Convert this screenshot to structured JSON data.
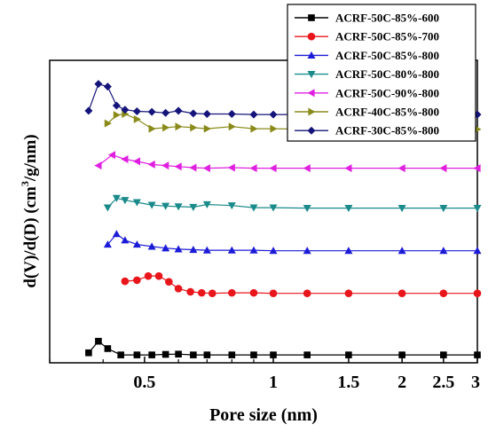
{
  "chart_data": {
    "type": "line",
    "xlabel": "Pore size (nm)",
    "ylabel_main": "d(V)/d(D) (cm",
    "ylabel_sup": "3",
    "ylabel_tail": "/g/nm)",
    "x_scale": "log",
    "xlim": [
      0.3,
      3
    ],
    "x_ticks": [
      0.5,
      1,
      1.5,
      2,
      2.5,
      3
    ],
    "x_tick_labels": [
      "0.5",
      "1",
      "1.5",
      "2",
      "2.5",
      "3"
    ],
    "y_ticks_shown": false,
    "legend_position": "top-right",
    "series": [
      {
        "name": "ACRF-50C-85%-600",
        "color": "#000000",
        "marker": "square",
        "x": [
          0.37,
          0.39,
          0.41,
          0.44,
          0.48,
          0.52,
          0.56,
          0.6,
          0.65,
          0.7,
          0.8,
          0.9,
          1.0,
          1.2,
          1.5,
          2.0,
          2.5,
          3.0
        ],
        "y": [
          0.4,
          2.6,
          1.2,
          0.0,
          0.0,
          0.0,
          0.1,
          0.15,
          0.0,
          0.0,
          0.0,
          0.0,
          0.0,
          0.0,
          0.0,
          0.0,
          0.0,
          0.0
        ]
      },
      {
        "name": "ACRF-50C-85%-700",
        "color": "#e8151b",
        "marker": "circle",
        "x": [
          0.45,
          0.48,
          0.51,
          0.54,
          0.57,
          0.6,
          0.64,
          0.68,
          0.72,
          0.8,
          0.9,
          1.0,
          1.2,
          1.5,
          2.0,
          2.5,
          3.0
        ],
        "y": [
          14.0,
          14.2,
          15.0,
          15.0,
          13.9,
          12.6,
          12.0,
          11.8,
          11.7,
          11.8,
          11.8,
          11.7,
          11.7,
          11.7,
          11.7,
          11.7,
          11.7
        ]
      },
      {
        "name": "ACRF-50C-85%-800",
        "color": "#1c1cd8",
        "marker": "triangle-up",
        "x": [
          0.41,
          0.43,
          0.45,
          0.48,
          0.52,
          0.56,
          0.6,
          0.65,
          0.7,
          0.8,
          0.9,
          1.0,
          1.2,
          1.5,
          2.0,
          2.5,
          3.0
        ],
        "y": [
          21.0,
          23.0,
          21.8,
          21.0,
          20.6,
          20.3,
          20.1,
          20.0,
          19.9,
          19.9,
          19.9,
          19.8,
          19.8,
          19.8,
          19.8,
          19.8,
          19.8
        ]
      },
      {
        "name": "ACRF-50C-80%-800",
        "color": "#1a8a8a",
        "marker": "triangle-down",
        "x": [
          0.41,
          0.43,
          0.45,
          0.48,
          0.52,
          0.56,
          0.6,
          0.65,
          0.7,
          0.8,
          0.9,
          1.0,
          1.2,
          1.5,
          2.0,
          2.5,
          3.0
        ],
        "y": [
          28.0,
          29.8,
          29.4,
          29.0,
          28.5,
          28.3,
          28.2,
          28.1,
          28.6,
          28.4,
          28.0,
          28.0,
          27.9,
          27.9,
          27.9,
          27.9,
          27.9
        ]
      },
      {
        "name": "ACRF-50C-90%-800",
        "color": "#e020e0",
        "marker": "triangle-left",
        "x": [
          0.39,
          0.42,
          0.45,
          0.48,
          0.52,
          0.56,
          0.6,
          0.65,
          0.7,
          0.8,
          0.9,
          1.0,
          1.2,
          1.5,
          2.0,
          2.5,
          3.0
        ],
        "y": [
          36.0,
          38.0,
          37.2,
          36.8,
          36.2,
          36.0,
          35.8,
          35.6,
          35.5,
          35.6,
          35.5,
          35.5,
          35.5,
          35.5,
          35.5,
          35.5,
          35.5
        ]
      },
      {
        "name": "ACRF-40C-85%-800",
        "color": "#8a8a1a",
        "marker": "triangle-right",
        "x": [
          0.41,
          0.43,
          0.45,
          0.48,
          0.52,
          0.56,
          0.6,
          0.65,
          0.7,
          0.8,
          0.9,
          1.0,
          1.2,
          1.5,
          2.0,
          2.5,
          3.0
        ],
        "y": [
          44.0,
          45.6,
          45.8,
          44.8,
          43.0,
          43.2,
          43.4,
          43.2,
          43.0,
          43.4,
          43.0,
          43.0,
          42.9,
          42.9,
          42.9,
          42.9,
          42.9
        ]
      },
      {
        "name": "ACRF-30C-85%-800",
        "color": "#14147a",
        "marker": "diamond",
        "x": [
          0.37,
          0.39,
          0.41,
          0.43,
          0.45,
          0.48,
          0.52,
          0.56,
          0.6,
          0.65,
          0.7,
          0.8,
          0.9,
          1.0,
          1.2,
          1.5,
          2.0,
          2.5,
          3.0
        ],
        "y": [
          46.4,
          51.5,
          51.0,
          47.4,
          46.6,
          46.3,
          46.2,
          46.0,
          46.4,
          45.9,
          45.8,
          45.8,
          45.7,
          45.7,
          45.7,
          45.7,
          45.7,
          45.7,
          45.7
        ]
      }
    ]
  }
}
